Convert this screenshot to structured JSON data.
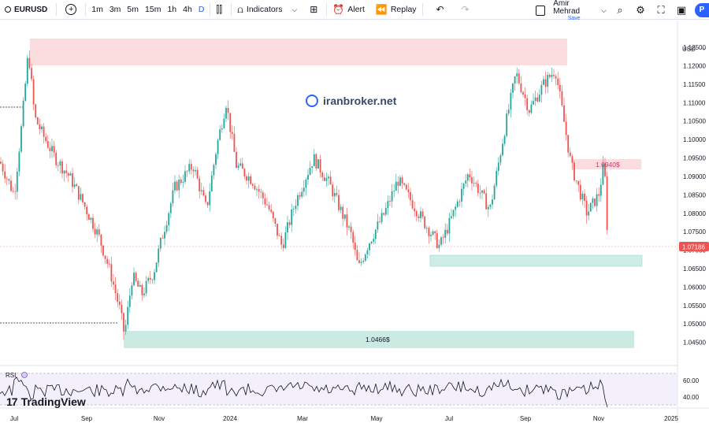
{
  "toolbar": {
    "symbol": "EURUSD",
    "intervals": [
      "1m",
      "3m",
      "5m",
      "15m",
      "1h",
      "4h",
      "D"
    ],
    "active_interval": "D",
    "indicators_label": "Indicators",
    "alert_label": "Alert",
    "replay_label": "Replay",
    "user_name": "Amir Mehrad",
    "user_save": "Save",
    "publish_initial": "P"
  },
  "colors": {
    "up": "#26a69a",
    "down": "#ef5350",
    "resistance_zone": "#f7c5cc",
    "support_zone": "#b7e2d8",
    "current_price_bg": "#ef5350",
    "accent": "#2962ff"
  },
  "watermark": "iranbroker.net",
  "brand": "TradingView",
  "price_axis": {
    "currency": "USD",
    "ticks": [
      "1.12500",
      "1.12000",
      "1.11500",
      "1.11000",
      "1.10500",
      "1.10000",
      "1.09500",
      "1.09000",
      "1.08500",
      "1.08000",
      "1.07500",
      "1.07000",
      "1.06500",
      "1.06000",
      "1.05500",
      "1.05000",
      "1.04500"
    ],
    "current_price": "1.07186"
  },
  "time_axis": {
    "labels": [
      "Jul",
      "Sep",
      "Nov",
      "2024",
      "Mar",
      "May",
      "Jul",
      "Sep",
      "Nov",
      "2025"
    ]
  },
  "zones": {
    "top_label": "",
    "right_mid_label": "1.0940$",
    "bottom_label": "1.0466$"
  },
  "rsi": {
    "label": "RSI",
    "ticks": [
      "60.00",
      "40.00"
    ]
  },
  "chart_data": {
    "type": "candlestick",
    "symbol": "EURUSD",
    "timeframe": "D",
    "ylim": [
      1.043,
      1.128
    ],
    "key_levels": {
      "resistance_zone": [
        1.1205,
        1.1275
      ],
      "minor_resistance": [
        1.093,
        1.0945
      ],
      "support_zone_mid": [
        1.067,
        1.0685
      ],
      "support_zone_low": [
        1.045,
        1.049
      ]
    },
    "path": [
      [
        0,
        1.094
      ],
      [
        18,
        1.085
      ],
      [
        28,
        1.105
      ],
      [
        36,
        1.124
      ],
      [
        44,
        1.106
      ],
      [
        55,
        1.101
      ],
      [
        70,
        1.095
      ],
      [
        88,
        1.09
      ],
      [
        105,
        1.083
      ],
      [
        125,
        1.074
      ],
      [
        140,
        1.064
      ],
      [
        152,
        1.054
      ],
      [
        158,
        1.047
      ],
      [
        168,
        1.063
      ],
      [
        180,
        1.058
      ],
      [
        195,
        1.064
      ],
      [
        205,
        1.073
      ],
      [
        222,
        1.087
      ],
      [
        245,
        1.093
      ],
      [
        262,
        1.081
      ],
      [
        275,
        1.098
      ],
      [
        287,
        1.11
      ],
      [
        300,
        1.093
      ],
      [
        320,
        1.089
      ],
      [
        340,
        1.082
      ],
      [
        358,
        1.071
      ],
      [
        375,
        1.083
      ],
      [
        398,
        1.095
      ],
      [
        418,
        1.088
      ],
      [
        432,
        1.081
      ],
      [
        446,
        1.074
      ],
      [
        455,
        1.065
      ],
      [
        468,
        1.072
      ],
      [
        488,
        1.08
      ],
      [
        505,
        1.089
      ],
      [
        520,
        1.084
      ],
      [
        540,
        1.077
      ],
      [
        558,
        1.071
      ],
      [
        572,
        1.078
      ],
      [
        595,
        1.091
      ],
      [
        622,
        1.081
      ],
      [
        640,
        1.102
      ],
      [
        655,
        1.118
      ],
      [
        672,
        1.108
      ],
      [
        690,
        1.115
      ],
      [
        705,
        1.119
      ],
      [
        712,
        1.11
      ],
      [
        725,
        1.093
      ],
      [
        745,
        1.08
      ],
      [
        760,
        1.085
      ],
      [
        767,
        1.094
      ],
      [
        772,
        1.07
      ]
    ]
  }
}
